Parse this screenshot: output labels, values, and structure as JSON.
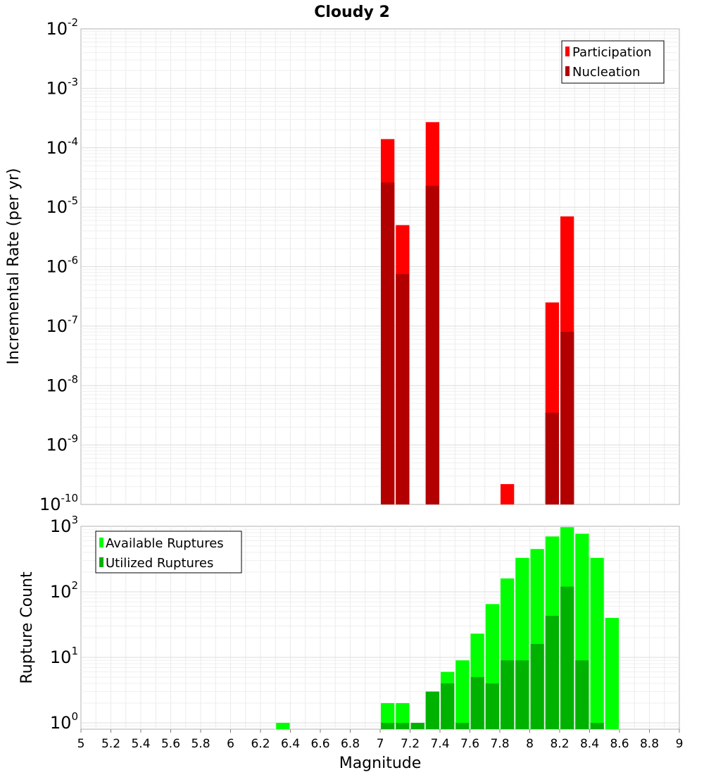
{
  "chart_data": [
    {
      "type": "bar",
      "title": "Cloudy 2",
      "xlabel": "",
      "ylabel": "Incremental Rate (per yr)",
      "yscale": "log",
      "xlim": [
        5,
        9
      ],
      "ylim": [
        1e-10,
        0.01
      ],
      "grid": true,
      "bar_width": 0.1,
      "overlay": true,
      "legend": {
        "placement": "top-right"
      },
      "yticks": [
        {
          "base": "10",
          "exp": "-10",
          "value": 1e-10
        },
        {
          "base": "10",
          "exp": "-9",
          "value": 1e-09
        },
        {
          "base": "10",
          "exp": "-8",
          "value": 1e-08
        },
        {
          "base": "10",
          "exp": "-7",
          "value": 1e-07
        },
        {
          "base": "10",
          "exp": "-6",
          "value": 1e-06
        },
        {
          "base": "10",
          "exp": "-5",
          "value": 1e-05
        },
        {
          "base": "10",
          "exp": "-4",
          "value": 0.0001
        },
        {
          "base": "10",
          "exp": "-3",
          "value": 0.001
        },
        {
          "base": "10",
          "exp": "-2",
          "value": 0.01
        }
      ],
      "series": [
        {
          "name": "Participation",
          "color": "#ff0000",
          "x": [
            7.05,
            7.15,
            7.35,
            7.85,
            8.15,
            8.25
          ],
          "values": [
            0.00014,
            5e-06,
            0.00027,
            2.2e-10,
            2.5e-07,
            7e-06
          ]
        },
        {
          "name": "Nucleation",
          "color": "#b20000",
          "x": [
            7.05,
            7.15,
            7.35,
            8.15,
            8.25
          ],
          "values": [
            2.6e-05,
            7.5e-07,
            2.3e-05,
            3.5e-09,
            8e-08
          ]
        }
      ]
    },
    {
      "type": "bar",
      "title": "",
      "xlabel": "Magnitude",
      "ylabel": "Rupture Count",
      "yscale": "log",
      "xlim": [
        5,
        9
      ],
      "ylim": [
        0.8,
        1000
      ],
      "grid": true,
      "bar_width": 0.1,
      "overlay": true,
      "legend": {
        "placement": "top-left"
      },
      "xticks": [
        "5",
        "5.2",
        "5.4",
        "5.6",
        "5.8",
        "6",
        "6.2",
        "6.4",
        "6.6",
        "6.8",
        "7",
        "7.2",
        "7.4",
        "7.6",
        "7.8",
        "8",
        "8.2",
        "8.4",
        "8.6",
        "8.8",
        "9"
      ],
      "yticks": [
        {
          "base": "10",
          "exp": "0",
          "value": 1
        },
        {
          "base": "10",
          "exp": "1",
          "value": 10
        },
        {
          "base": "10",
          "exp": "2",
          "value": 100
        },
        {
          "base": "10",
          "exp": "3",
          "value": 1000
        }
      ],
      "series": [
        {
          "name": "Available Ruptures",
          "color": "#00ff00",
          "x": [
            6.35,
            7.05,
            7.15,
            7.25,
            7.35,
            7.45,
            7.55,
            7.65,
            7.75,
            7.85,
            7.95,
            8.05,
            8.15,
            8.25,
            8.35,
            8.45,
            8.55
          ],
          "values": [
            1,
            2,
            2,
            1,
            3,
            6,
            9,
            23,
            65,
            160,
            330,
            450,
            700,
            970,
            770,
            330,
            40
          ]
        },
        {
          "name": "Utilized Ruptures",
          "color": "#00b200",
          "x": [
            7.05,
            7.15,
            7.25,
            7.35,
            7.45,
            7.55,
            7.65,
            7.75,
            7.85,
            7.95,
            8.05,
            8.15,
            8.25,
            8.35,
            8.45
          ],
          "values": [
            1,
            1,
            1,
            3,
            4,
            1,
            5,
            4,
            9,
            9,
            16,
            43,
            120,
            9,
            1
          ]
        }
      ]
    }
  ]
}
